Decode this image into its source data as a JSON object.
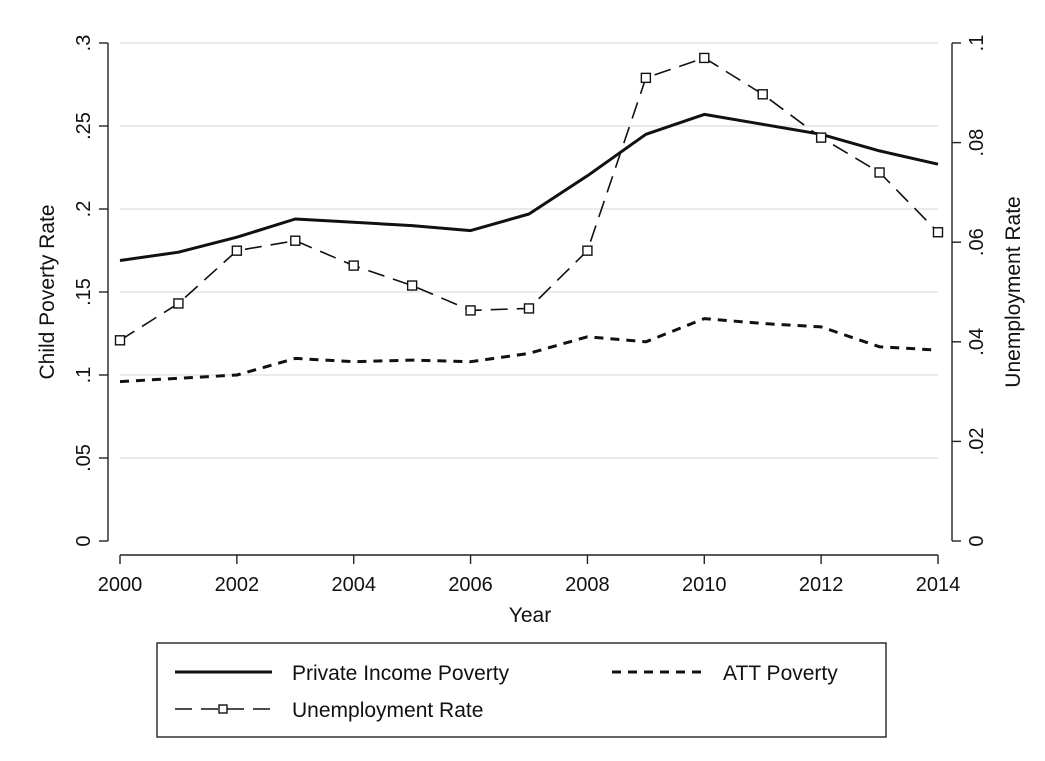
{
  "chart_data": {
    "type": "line",
    "xlabel": "Year",
    "ylabel_left": "Child Poverty Rate",
    "ylabel_right": "Unemployment Rate",
    "xlim": [
      2000,
      2014
    ],
    "ylim_left": [
      0,
      0.3
    ],
    "ylim_right": [
      0,
      0.1
    ],
    "x_ticks": [
      "2000",
      "2002",
      "2004",
      "2006",
      "2008",
      "2010",
      "2012",
      "2014"
    ],
    "y_left_ticks": [
      "0",
      ".05",
      ".1",
      ".15",
      ".2",
      ".25",
      ".3"
    ],
    "y_right_ticks": [
      "0",
      ".02",
      ".04",
      ".06",
      ".08",
      ".1"
    ],
    "grid": true,
    "legend_position": "bottom",
    "x": [
      2000,
      2001,
      2002,
      2003,
      2004,
      2005,
      2006,
      2007,
      2008,
      2009,
      2010,
      2011,
      2012,
      2013,
      2014
    ],
    "series": [
      {
        "name": "Private Income Poverty",
        "axis": "left",
        "style": "solid",
        "values": [
          0.169,
          0.174,
          0.183,
          0.194,
          0.192,
          0.19,
          0.187,
          0.197,
          0.22,
          0.245,
          0.257,
          0.251,
          0.245,
          0.235,
          0.227
        ]
      },
      {
        "name": "ATT Poverty",
        "axis": "left",
        "style": "dashed",
        "values": [
          0.096,
          0.098,
          0.1,
          0.11,
          0.108,
          0.109,
          0.108,
          0.113,
          0.123,
          0.12,
          0.134,
          0.131,
          0.129,
          0.117,
          0.115
        ]
      },
      {
        "name": "Unemployment Rate",
        "axis": "right",
        "style": "longdash-square-markers",
        "values": [
          0.0403,
          0.0477,
          0.0583,
          0.0603,
          0.0553,
          0.0513,
          0.0463,
          0.0467,
          0.0583,
          0.093,
          0.097,
          0.0897,
          0.081,
          0.074,
          0.062
        ]
      }
    ]
  },
  "colors": {
    "line": "#111111",
    "grid": "#e3e3e3",
    "background": "#ffffff"
  }
}
